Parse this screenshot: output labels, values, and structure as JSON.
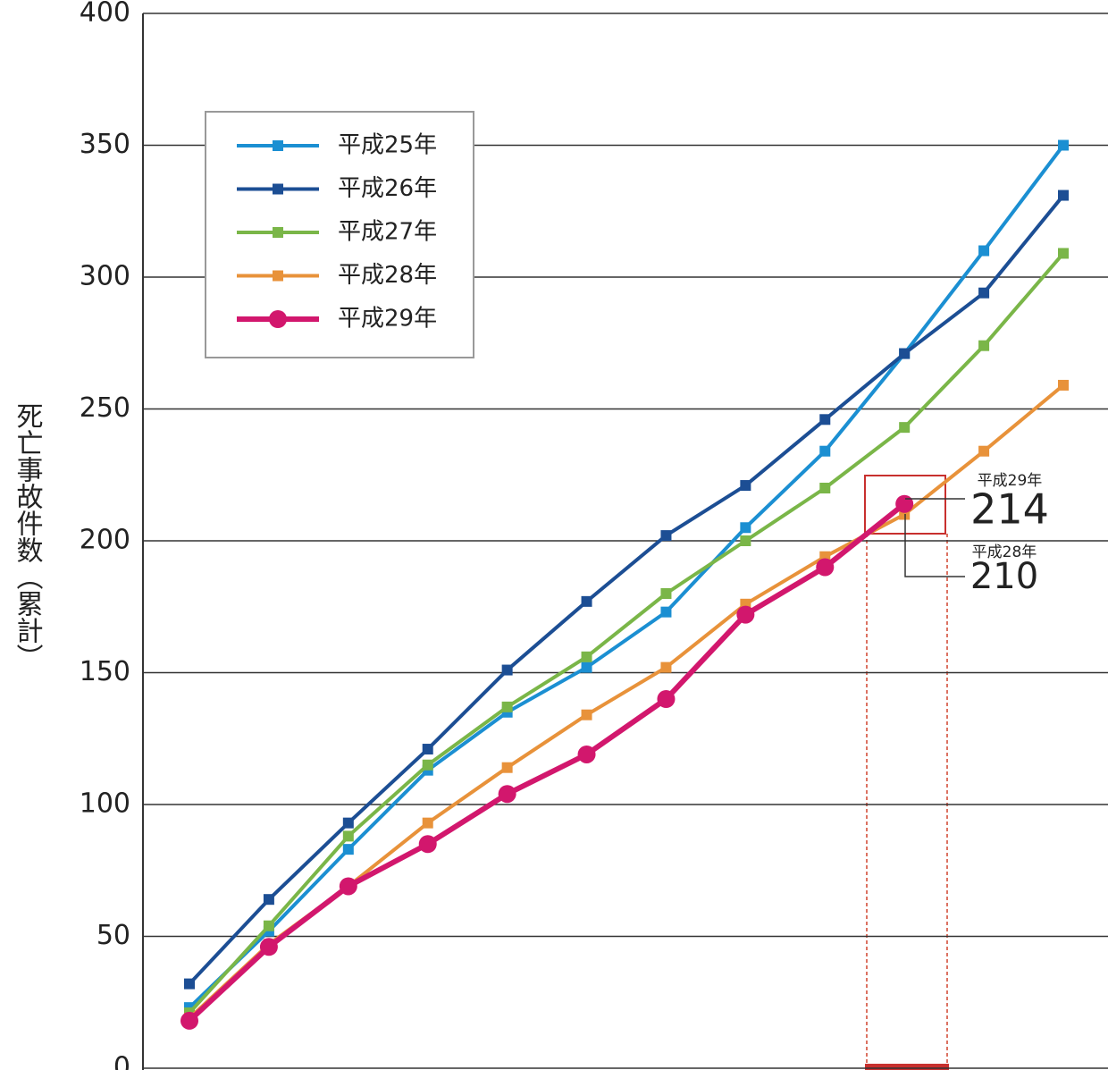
{
  "chart_data": {
    "type": "line",
    "y_label": "死亡事故件数（累計）",
    "categories": [
      null,
      null,
      null,
      null,
      null,
      null,
      null,
      null,
      null,
      null,
      null,
      null
    ],
    "series": [
      {
        "name": "平成25年",
        "color": "#1b8fd2",
        "marker": "square",
        "values": [
          23,
          52,
          83,
          113,
          135,
          152,
          173,
          205,
          234,
          271,
          310,
          350
        ]
      },
      {
        "name": "平成26年",
        "color": "#1c4e94",
        "marker": "square",
        "values": [
          32,
          64,
          93,
          121,
          151,
          177,
          202,
          221,
          246,
          271,
          294,
          331
        ]
      },
      {
        "name": "平成27年",
        "color": "#7ab648",
        "marker": "square",
        "values": [
          21,
          54,
          88,
          115,
          137,
          156,
          180,
          200,
          220,
          243,
          274,
          309
        ]
      },
      {
        "name": "平成28年",
        "color": "#e8923a",
        "marker": "square",
        "values": [
          19,
          47,
          69,
          93,
          114,
          134,
          152,
          176,
          194,
          210,
          234,
          259
        ]
      },
      {
        "name": "平成29年",
        "color": "#d2176d",
        "marker": "circle",
        "values": [
          18,
          46,
          69,
          85,
          104,
          119,
          140,
          172,
          190,
          214,
          null,
          null
        ]
      }
    ],
    "annotations": [
      {
        "text": "平成29年",
        "value": 214
      },
      {
        "text": "平成28年",
        "value": 210
      }
    ],
    "ylim": [
      0,
      400
    ],
    "yticks": [
      0,
      50,
      100,
      150,
      200,
      250,
      300,
      350,
      400
    ],
    "grid": true,
    "legend": "upper left"
  }
}
